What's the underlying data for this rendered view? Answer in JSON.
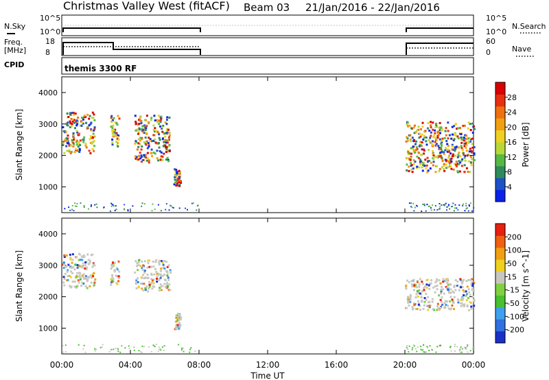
{
  "header": {
    "station": "Christmas Valley West (fitACF)",
    "beam": "Beam 03",
    "date_range": "21/Jan/2016 - 22/Jan/2016"
  },
  "sky_panel": {
    "left_label": "N.Sky",
    "right_label": "N.Search",
    "tick_top": "10^5",
    "tick_bottom": "10^0"
  },
  "freq_panel": {
    "left_label_1": "Freq.",
    "left_label_2": "[MHz]",
    "right_label": "Nave",
    "tick_left_top": "18",
    "tick_left_bottom": "8",
    "tick_right_top": "60",
    "tick_right_bottom": "0"
  },
  "cpid_panel": {
    "label": "CPID",
    "mode": "themis 3300 RF"
  },
  "chart_data": [
    {
      "type": "heatmap",
      "ylabel": "Slant Range [km]",
      "ytick_labels": [
        "1000",
        "2000",
        "3000",
        "4000"
      ],
      "colorbar_label": "Power [dB]",
      "colorbar_ticks": [
        "4",
        "8",
        "12",
        "16",
        "20",
        "24",
        "28"
      ],
      "colors": [
        "#0a22e8",
        "#1e50c8",
        "#2f8a5a",
        "#58b846",
        "#b8d83a",
        "#f0d020",
        "#f0a010",
        "#f07010",
        "#e83010",
        "#d80000"
      ],
      "time_windows_h": [
        [
          0,
          8
        ],
        [
          20,
          24
        ]
      ],
      "echo_regions": [
        {
          "t_start_h": 0.0,
          "t_end_h": 1.9,
          "range_km_min": 2100,
          "range_km_max": 3400
        },
        {
          "t_start_h": 2.8,
          "t_end_h": 3.3,
          "range_km_min": 2300,
          "range_km_max": 3300
        },
        {
          "t_start_h": 4.2,
          "t_end_h": 6.3,
          "range_km_min": 1800,
          "range_km_max": 3300
        },
        {
          "t_start_h": 6.5,
          "t_end_h": 6.9,
          "range_km_min": 1000,
          "range_km_max": 1600
        },
        {
          "t_start_h": 20.0,
          "t_end_h": 24.0,
          "range_km_min": 1500,
          "range_km_max": 3100
        }
      ]
    },
    {
      "type": "heatmap",
      "ylabel": "Slant Range [km]",
      "ytick_labels": [
        "1000",
        "2000",
        "3000",
        "4000"
      ],
      "colorbar_label": "Velocity [m s^-1]",
      "colorbar_ticks": [
        "200",
        "100",
        "50",
        "15",
        "-15",
        "-50",
        "-100",
        "-200"
      ],
      "colors": [
        "#1a30c8",
        "#3070e0",
        "#40a0f0",
        "#48c030",
        "#80d040",
        "#c8c8c0",
        "#f0d020",
        "#f0a010",
        "#f06010",
        "#e82010"
      ],
      "time_windows_h": [
        [
          0,
          8
        ],
        [
          20,
          24
        ]
      ],
      "echo_regions": [
        {
          "t_start_h": 0.0,
          "t_end_h": 1.9,
          "range_km_min": 2300,
          "range_km_max": 3400
        },
        {
          "t_start_h": 2.8,
          "t_end_h": 3.3,
          "range_km_min": 2400,
          "range_km_max": 3200
        },
        {
          "t_start_h": 4.2,
          "t_end_h": 6.3,
          "range_km_min": 2200,
          "range_km_max": 3200
        },
        {
          "t_start_h": 6.5,
          "t_end_h": 6.9,
          "range_km_min": 1000,
          "range_km_max": 1500
        },
        {
          "t_start_h": 20.0,
          "t_end_h": 24.0,
          "range_km_min": 1600,
          "range_km_max": 2600
        }
      ]
    }
  ],
  "x_axis": {
    "label": "Time UT",
    "tick_labels": [
      "00:00",
      "04:00",
      "08:00",
      "12:00",
      "16:00",
      "20:00",
      "00:00"
    ]
  }
}
